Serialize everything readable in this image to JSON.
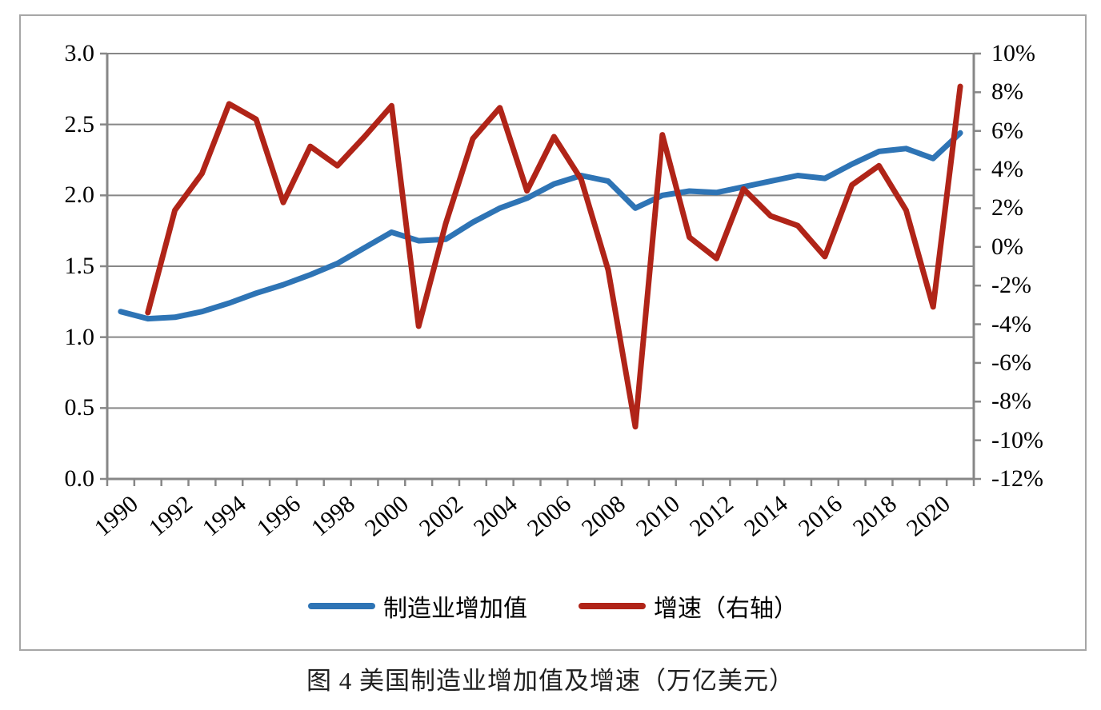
{
  "chart_data": {
    "type": "line",
    "title": "图 4 美国制造业增加值及增速（万亿美元）",
    "x": [
      1990,
      1991,
      1992,
      1993,
      1994,
      1995,
      1996,
      1997,
      1998,
      1999,
      2000,
      2001,
      2002,
      2003,
      2004,
      2005,
      2006,
      2007,
      2008,
      2009,
      2010,
      2011,
      2012,
      2013,
      2014,
      2015,
      2016,
      2017,
      2018,
      2019,
      2020,
      2021
    ],
    "x_tick_labels": [
      "1990",
      "1992",
      "1994",
      "1996",
      "1998",
      "2000",
      "2002",
      "2004",
      "2006",
      "2008",
      "2010",
      "2012",
      "2014",
      "2016",
      "2018",
      "2020"
    ],
    "left_axis": {
      "min": 0.0,
      "max": 3.0,
      "step": 0.5,
      "tick_labels": [
        "3.0",
        "2.5",
        "2.0",
        "1.5",
        "1.0",
        "0.5",
        "0.0"
      ]
    },
    "right_axis": {
      "min": -12,
      "max": 10,
      "step": 2,
      "tick_labels": [
        "10%",
        "8%",
        "6%",
        "4%",
        "2%",
        "0%",
        "-2%",
        "-4%",
        "-6%",
        "-8%",
        "-10%",
        "-12%"
      ]
    },
    "grid": "horizontal",
    "legend_position": "bottom",
    "colors": {
      "grid": "#878787",
      "axis": "#878787",
      "text": "#000000"
    },
    "series": [
      {
        "name": "制造业增加值",
        "axis": "left",
        "unit": "万亿美元",
        "color": "#2E74B5",
        "values": [
          1.18,
          1.13,
          1.14,
          1.18,
          1.24,
          1.31,
          1.37,
          1.44,
          1.52,
          1.63,
          1.74,
          1.68,
          1.69,
          1.81,
          1.91,
          1.98,
          2.08,
          2.14,
          2.1,
          1.91,
          2.0,
          2.03,
          2.02,
          2.06,
          2.1,
          2.14,
          2.12,
          2.22,
          2.31,
          2.33,
          2.26,
          2.44
        ]
      },
      {
        "name": "增速（右轴）",
        "axis": "right",
        "unit": "%",
        "color": "#B02418",
        "values": [
          null,
          -3.4,
          1.9,
          3.8,
          7.4,
          6.6,
          2.3,
          5.2,
          4.2,
          5.7,
          7.3,
          -4.1,
          1.2,
          5.6,
          7.2,
          2.9,
          5.7,
          3.5,
          -1.2,
          -9.3,
          5.8,
          0.5,
          -0.6,
          3.0,
          1.6,
          1.1,
          -0.5,
          3.2,
          4.2,
          1.9,
          -3.1,
          8.3
        ]
      }
    ]
  }
}
